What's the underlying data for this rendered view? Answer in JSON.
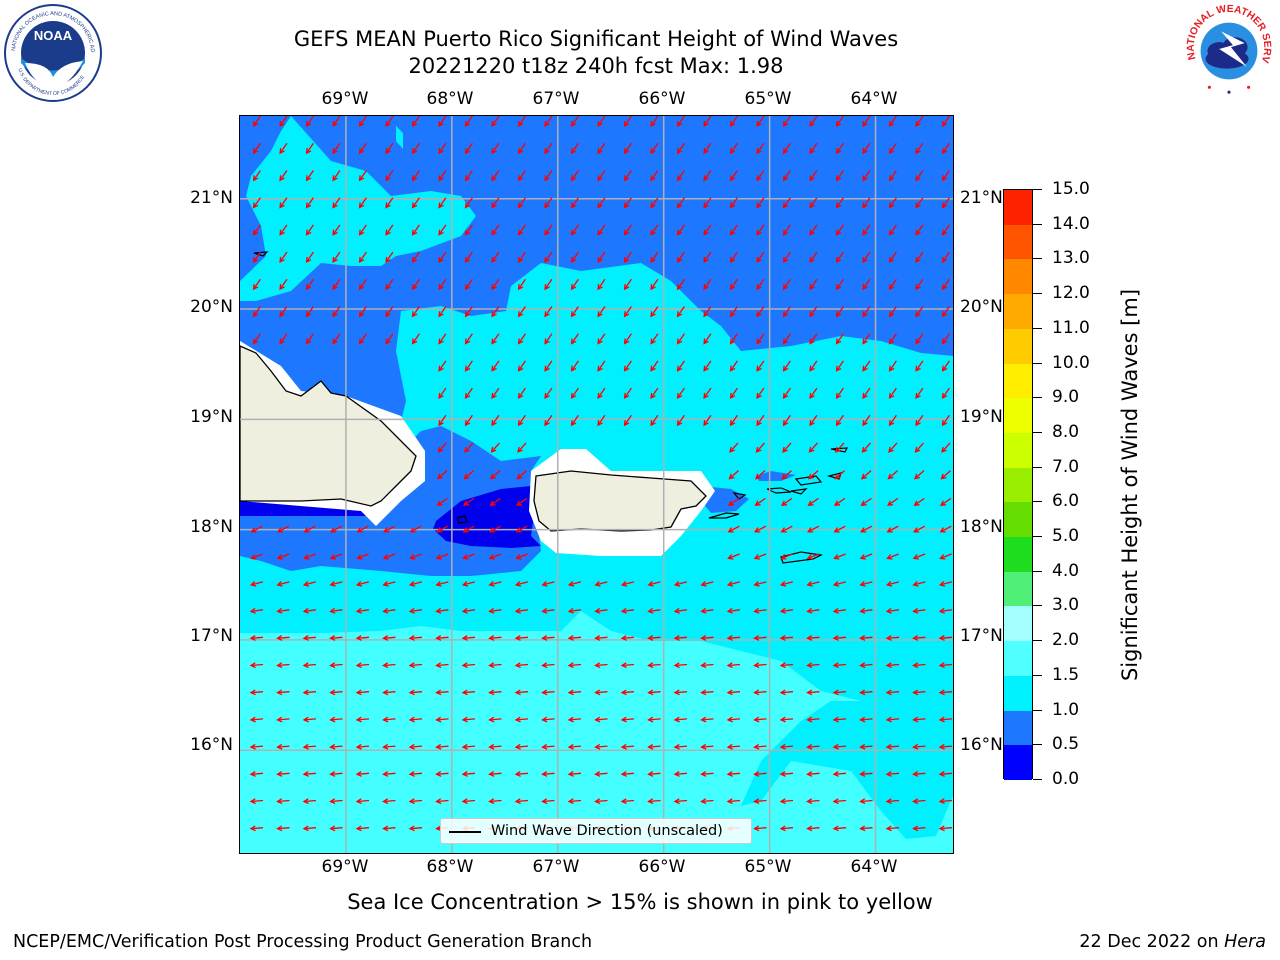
{
  "header": {
    "title_line1": "GEFS MEAN Puerto Rico Significant Height of Wind Waves",
    "title_line2": "20221220 t18z 240h fcst   Max: 1.98"
  },
  "logos": {
    "noaa_text": "NOAA",
    "noaa_ring_text": "NATIONAL OCEANIC AND ATMOSPHERIC ADMINISTRATION",
    "noaa_ring_text_bottom": "U.S. DEPARTMENT OF COMMERCE",
    "nws_ring_text": "NATIONAL WEATHER SERVICE"
  },
  "axes": {
    "lon_labels": [
      "69°W",
      "68°W",
      "67°W",
      "66°W",
      "65°W",
      "64°W"
    ],
    "lat_labels": [
      "21°N",
      "20°N",
      "19°N",
      "18°N",
      "17°N",
      "16°N"
    ]
  },
  "map_data": {
    "lon_range": [
      -70.0,
      -63.25
    ],
    "lat_range": [
      15.05,
      21.75
    ],
    "grid": true,
    "projection": "plate carree",
    "region": "Puerto Rico",
    "variable": "Significant Height of Wind Waves",
    "unit": "m",
    "contour_levels": [
      0.0,
      0.5,
      1.0,
      1.5,
      2.0,
      3.0
    ],
    "colors": {
      "0.0-0.5": "#0000ee",
      "0.5-1.0": "#1e78ff",
      "1.0-1.5": "#00f0ff",
      "1.5-2.0": "#44ffff",
      "land": "#efefdf",
      "coastline": "#000000",
      "arrows": "#ff0000",
      "grid": "#b0b0b0"
    },
    "max_value": 1.98,
    "arrow_field": "predominantly from northeast north of Puerto Rico, from east in the south",
    "legend_position": "lower center"
  },
  "colorbar": {
    "title": "Significant Height of Wind Waves [m]",
    "ticks": [
      "0.0",
      "0.5",
      "1.0",
      "1.5",
      "2.0",
      "3.0",
      "4.0",
      "5.0",
      "6.0",
      "7.0",
      "8.0",
      "9.0",
      "10.0",
      "11.0",
      "12.0",
      "13.0",
      "14.0",
      "15.0"
    ],
    "colors": [
      "#0000ff",
      "#1e78ff",
      "#00f2ff",
      "#50ffff",
      "#a5ffff",
      "#50f078",
      "#1edc1e",
      "#66dd00",
      "#99ee00",
      "#ccff00",
      "#eeff00",
      "#ffee00",
      "#ffcc00",
      "#ffaa00",
      "#ff8800",
      "#ff5500",
      "#ff2200"
    ]
  },
  "legend": {
    "label": "Wind Wave Direction (unscaled)"
  },
  "note": "Sea Ice Concentration > 15% is shown in pink to yellow",
  "footer": {
    "left": "NCEP/EMC/Verification Post Processing Product Generation Branch",
    "right_date": "22 Dec 2022 on ",
    "right_host": "Hera"
  }
}
